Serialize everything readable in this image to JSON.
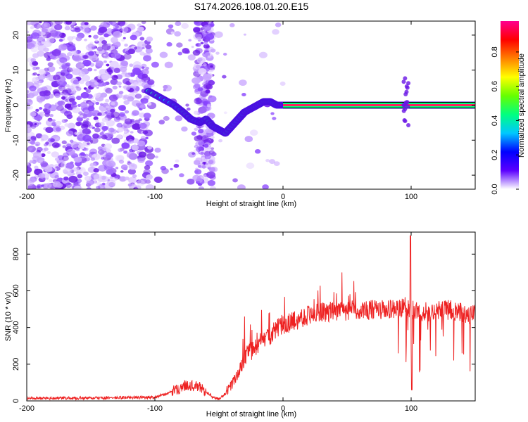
{
  "title": "S174.2026.108.01.20.E15",
  "colorbar": {
    "label": "Normalized spectral amplitude",
    "ticks": [
      "0.0",
      "0.2",
      "0.4",
      "0.6",
      "0.8"
    ],
    "stops": [
      "#ffffff",
      "#5b00ff",
      "#0000ff",
      "#00c8ff",
      "#00ff80",
      "#66ff00",
      "#ffff00",
      "#ff8000",
      "#ff0000",
      "#ff0090"
    ]
  },
  "chart_data": [
    {
      "type": "heatmap",
      "title": "S174.2026.108.01.20.E15",
      "xlabel": "Height of straight line (km)",
      "ylabel": "Frequency (Hz)",
      "xlim": [
        -200,
        150
      ],
      "ylim": [
        -24,
        24
      ],
      "xticks": [
        "-200",
        "-100",
        "0",
        "100"
      ],
      "yticks": [
        "-20",
        "-10",
        "0",
        "10",
        "20"
      ],
      "ridge": {
        "description_points_x": [
          -105,
          -95,
          -85,
          -78,
          -72,
          -65,
          -60,
          -55,
          -50,
          -45,
          -40,
          -35,
          -30,
          -25,
          -20,
          -15,
          -10,
          -5,
          0,
          5,
          10
        ],
        "description_points_y": [
          4,
          2,
          0,
          -2,
          -4,
          -5,
          -4,
          -6,
          -7,
          -8,
          -6,
          -4,
          -2,
          -1,
          0,
          1,
          1,
          0,
          0,
          0,
          0
        ]
      },
      "line": {
        "y": 0,
        "x_from": 0,
        "x_to": 150
      }
    },
    {
      "type": "line",
      "xlabel": "Height of straight line (km)",
      "ylabel": "SNR (10 * v/v)",
      "xlim": [
        -200,
        150
      ],
      "ylim": [
        0,
        920
      ],
      "xticks": [
        "-200",
        "-100",
        "0",
        "100"
      ],
      "yticks": [
        "0",
        "200",
        "400",
        "600",
        "800"
      ],
      "color": "#ee2222",
      "series": [
        {
          "name": "SNR",
          "x": [
            -200,
            -150,
            -100,
            -90,
            -80,
            -75,
            -70,
            -65,
            -60,
            -55,
            -50,
            -45,
            -40,
            -35,
            -30,
            -25,
            -20,
            -15,
            -10,
            -5,
            0,
            10,
            20,
            30,
            40,
            50,
            60,
            70,
            80,
            90,
            95,
            100,
            105,
            110,
            120,
            130,
            140,
            150
          ],
          "values": [
            15,
            15,
            20,
            40,
            70,
            90,
            80,
            75,
            50,
            20,
            10,
            40,
            90,
            150,
            230,
            270,
            300,
            330,
            360,
            390,
            410,
            440,
            470,
            480,
            490,
            490,
            500,
            495,
            495,
            500,
            520,
            500,
            480,
            485,
            490,
            495,
            480,
            470
          ]
        }
      ],
      "peaks": [
        {
          "x": 100,
          "y": 900
        },
        {
          "x": 101,
          "y": 60
        },
        {
          "x": -30,
          "y": 460
        }
      ]
    }
  ]
}
